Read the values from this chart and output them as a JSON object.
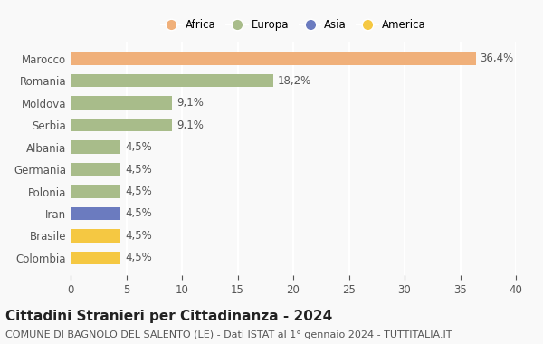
{
  "categories": [
    "Colombia",
    "Brasile",
    "Iran",
    "Polonia",
    "Germania",
    "Albania",
    "Serbia",
    "Moldova",
    "Romania",
    "Marocco"
  ],
  "values": [
    4.5,
    4.5,
    4.5,
    4.5,
    4.5,
    4.5,
    9.1,
    9.1,
    18.2,
    36.4
  ],
  "labels": [
    "4,5%",
    "4,5%",
    "4,5%",
    "4,5%",
    "4,5%",
    "4,5%",
    "9,1%",
    "9,1%",
    "18,2%",
    "36,4%"
  ],
  "colors": [
    "#f5c842",
    "#f5c842",
    "#6b7bbf",
    "#a8bc8a",
    "#a8bc8a",
    "#a8bc8a",
    "#a8bc8a",
    "#a8bc8a",
    "#a8bc8a",
    "#f0b07a"
  ],
  "legend": [
    {
      "label": "Africa",
      "color": "#f0b07a"
    },
    {
      "label": "Europa",
      "color": "#a8bc8a"
    },
    {
      "label": "Asia",
      "color": "#6b7bbf"
    },
    {
      "label": "America",
      "color": "#f5c842"
    }
  ],
  "xlim": [
    0,
    40
  ],
  "xticks": [
    0,
    5,
    10,
    15,
    20,
    25,
    30,
    35,
    40
  ],
  "title": "Cittadini Stranieri per Cittadinanza - 2024",
  "subtitle": "COMUNE DI BAGNOLO DEL SALENTO (LE) - Dati ISTAT al 1° gennaio 2024 - TUTTITALIA.IT",
  "background_color": "#f9f9f9",
  "grid_color": "#ffffff",
  "label_fontsize": 8.5,
  "tick_fontsize": 8.5,
  "title_fontsize": 11,
  "subtitle_fontsize": 8
}
